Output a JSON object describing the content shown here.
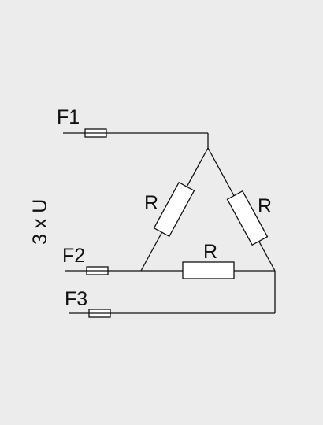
{
  "diagram": {
    "supply_label": "3 x U",
    "fuses": [
      {
        "label": "F1"
      },
      {
        "label": "F2"
      },
      {
        "label": "F3"
      }
    ],
    "resistors": [
      {
        "label": "R"
      },
      {
        "label": "R"
      },
      {
        "label": "R"
      }
    ],
    "colors": {
      "background": "#ececec",
      "line": "#111111",
      "component_fill": "#ffffff"
    }
  }
}
